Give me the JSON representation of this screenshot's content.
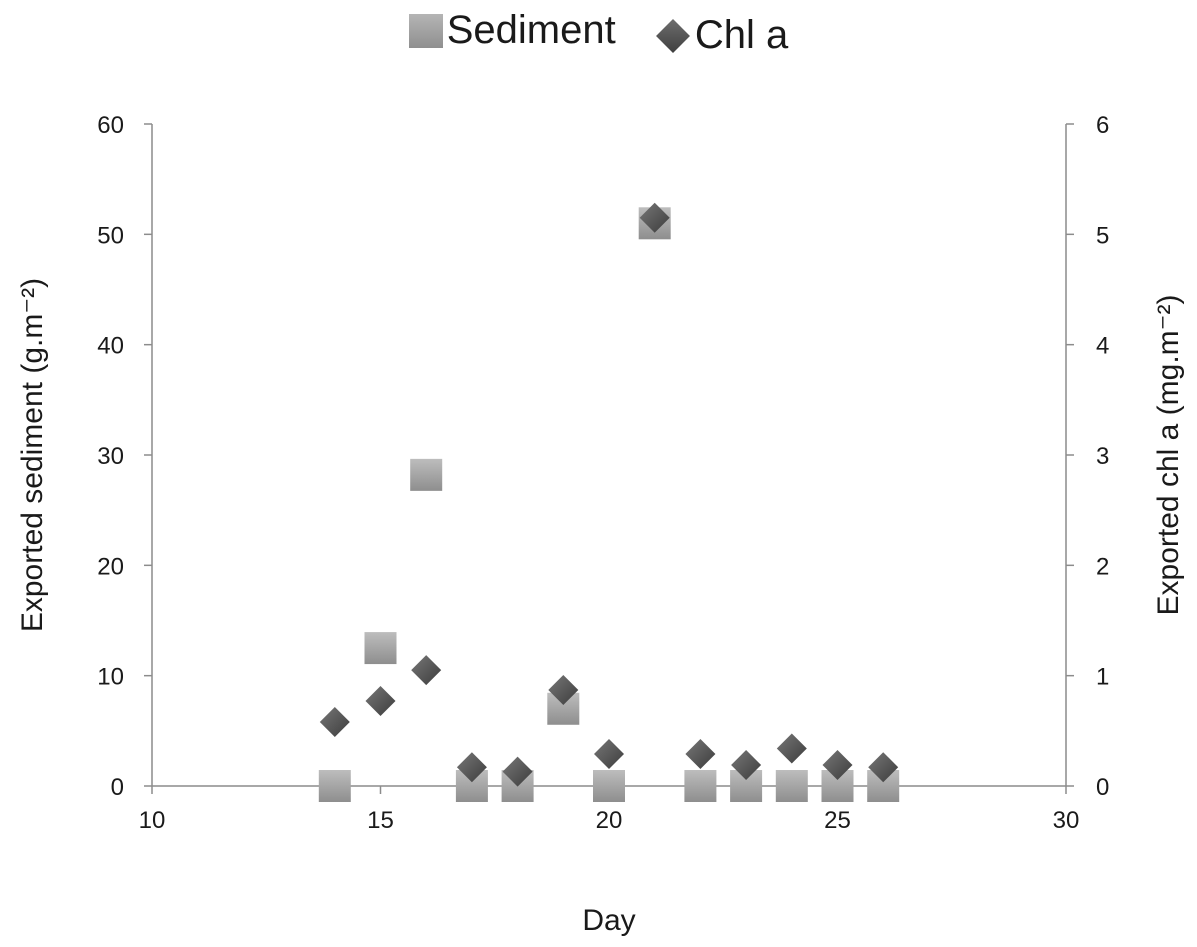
{
  "chart_data": {
    "type": "scatter",
    "title": "",
    "xlabel": "Day",
    "ylabel": "Exported sediment  (g.m⁻²)",
    "y2label": "Exported chl a (mg.m⁻²)",
    "xlim": [
      10,
      30
    ],
    "ylim": [
      0,
      60
    ],
    "y2lim": [
      0,
      6
    ],
    "xticks": [
      10,
      15,
      20,
      25,
      30
    ],
    "yticks": [
      0,
      10,
      20,
      30,
      40,
      50,
      60
    ],
    "y2ticks": [
      0,
      1,
      2,
      3,
      4,
      5,
      6
    ],
    "grid": false,
    "legend_position": "top-center",
    "series": [
      {
        "name": "Sediment",
        "axis": "left",
        "marker": "square",
        "color": "#9e9e9e",
        "x": [
          14,
          15,
          16,
          17,
          18,
          19,
          20,
          21,
          22,
          23,
          24,
          25,
          26
        ],
        "y": [
          0,
          12.5,
          28.2,
          0,
          0,
          7,
          0,
          51,
          0,
          0,
          0,
          0,
          0
        ]
      },
      {
        "name": "Chl a",
        "axis": "right",
        "marker": "diamond",
        "color": "#555555",
        "x": [
          14,
          15,
          16,
          17,
          18,
          19,
          20,
          21,
          22,
          23,
          24,
          25,
          26
        ],
        "y": [
          0.58,
          0.77,
          1.05,
          0.17,
          0.13,
          0.87,
          0.29,
          5.15,
          0.29,
          0.19,
          0.34,
          0.19,
          0.17
        ]
      }
    ]
  }
}
